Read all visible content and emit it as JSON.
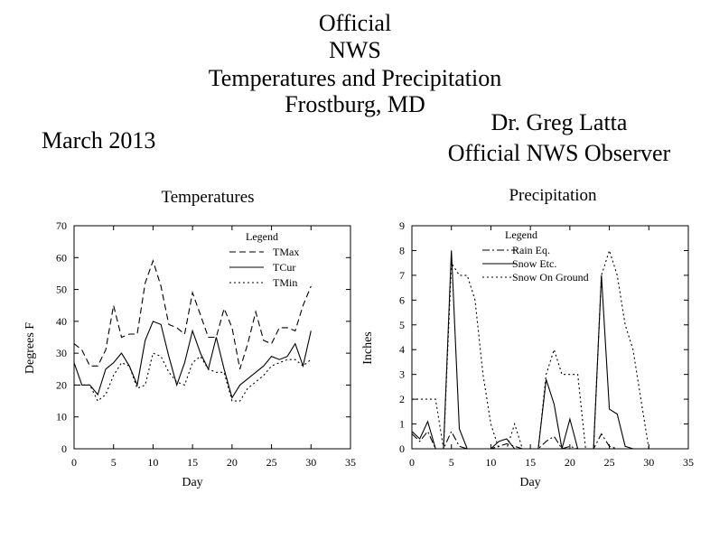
{
  "header": {
    "title_lines": [
      "Official",
      "NWS",
      "Temperatures and Precipitation",
      "Frostburg, MD"
    ],
    "month": "March 2013",
    "observer_lines": [
      "Dr. Greg Latta",
      "Official NWS Observer"
    ]
  },
  "chart_data": [
    {
      "type": "line",
      "title": "Temperatures",
      "xlabel": "Day",
      "ylabel": "Degrees F",
      "xlim": [
        0,
        35
      ],
      "ylim": [
        0,
        70
      ],
      "xticks": [
        0,
        5,
        10,
        15,
        20,
        25,
        30,
        35
      ],
      "yticks": [
        0,
        10,
        20,
        30,
        40,
        50,
        60,
        70
      ],
      "grid": false,
      "legend_title": "Legend",
      "legend_position": "top-right",
      "x": [
        0,
        1,
        2,
        3,
        4,
        5,
        6,
        7,
        8,
        9,
        10,
        11,
        12,
        13,
        14,
        15,
        16,
        17,
        18,
        19,
        20,
        21,
        22,
        23,
        24,
        25,
        26,
        27,
        28,
        29,
        30
      ],
      "series": [
        {
          "name": "TMax",
          "style": "dashed",
          "values": [
            33,
            31,
            26,
            26,
            31,
            45,
            35,
            36,
            36,
            52,
            59,
            51,
            39,
            38,
            36,
            49,
            42,
            35,
            35,
            44,
            38,
            25,
            33,
            43,
            34,
            33,
            38,
            38,
            37,
            45,
            51
          ]
        },
        {
          "name": "TCur",
          "style": "solid",
          "values": [
            27,
            20,
            20,
            17,
            25,
            27,
            30,
            26,
            20,
            34,
            40,
            39,
            29,
            20,
            27,
            37,
            30,
            25,
            35,
            25,
            16,
            20,
            22,
            24,
            26,
            29,
            28,
            29,
            33,
            26,
            37
          ]
        },
        {
          "name": "TMin",
          "style": "dotted",
          "values": [
            20,
            20,
            20,
            15,
            17,
            23,
            27,
            26,
            19,
            20,
            30,
            29,
            24,
            21,
            20,
            27,
            29,
            25,
            24,
            24,
            15,
            15,
            19,
            21,
            23,
            26,
            27,
            28,
            28,
            26,
            28
          ]
        }
      ]
    },
    {
      "type": "line",
      "title": "Precipitation",
      "xlabel": "Day",
      "ylabel": "Inches",
      "xlim": [
        0,
        35
      ],
      "ylim": [
        0,
        9
      ],
      "xticks": [
        0,
        5,
        10,
        15,
        20,
        25,
        30,
        35
      ],
      "yticks": [
        0,
        1,
        2,
        3,
        4,
        5,
        6,
        7,
        8,
        9
      ],
      "grid": false,
      "legend_title": "Legend",
      "legend_position": "top-center",
      "x": [
        0,
        1,
        2,
        3,
        4,
        5,
        6,
        7,
        8,
        9,
        10,
        11,
        12,
        13,
        14,
        15,
        16,
        17,
        18,
        19,
        20,
        21,
        22,
        23,
        24,
        25,
        26,
        27,
        28,
        29,
        30
      ],
      "series": [
        {
          "name": "Rain Eq.",
          "style": "dashdot",
          "values": [
            0.6,
            0.3,
            0.7,
            0.0,
            0.0,
            0.7,
            0.1,
            0.0,
            0.0,
            0.0,
            0.0,
            0.1,
            0.2,
            0.1,
            0.0,
            0.0,
            0.0,
            0.3,
            0.5,
            0.0,
            0.1,
            0.0,
            0.0,
            0.0,
            0.6,
            0.1,
            0.0,
            0.0,
            0.0,
            0.0,
            0.0
          ]
        },
        {
          "name": "Snow Etc.",
          "style": "solid",
          "values": [
            0.7,
            0.4,
            1.1,
            0.0,
            0.0,
            8.0,
            0.8,
            0.0,
            0.0,
            0.0,
            0.0,
            0.3,
            0.4,
            0.0,
            0.0,
            0.0,
            0.0,
            2.8,
            1.8,
            0.0,
            1.2,
            0.0,
            0.0,
            0.0,
            7.0,
            1.6,
            1.4,
            0.1,
            0.0,
            0.0,
            0.0
          ]
        },
        {
          "name": "Snow On Ground",
          "style": "dotted",
          "values": [
            2.0,
            2.0,
            2.0,
            2.0,
            0.0,
            7.5,
            7.0,
            7.0,
            6.0,
            3.0,
            1.0,
            0.0,
            0.0,
            1.0,
            0.0,
            0.0,
            0.0,
            3.0,
            4.0,
            3.0,
            3.0,
            3.0,
            0.0,
            0.0,
            7.0,
            8.0,
            7.0,
            5.0,
            4.0,
            2.0,
            0.0
          ]
        }
      ]
    }
  ]
}
